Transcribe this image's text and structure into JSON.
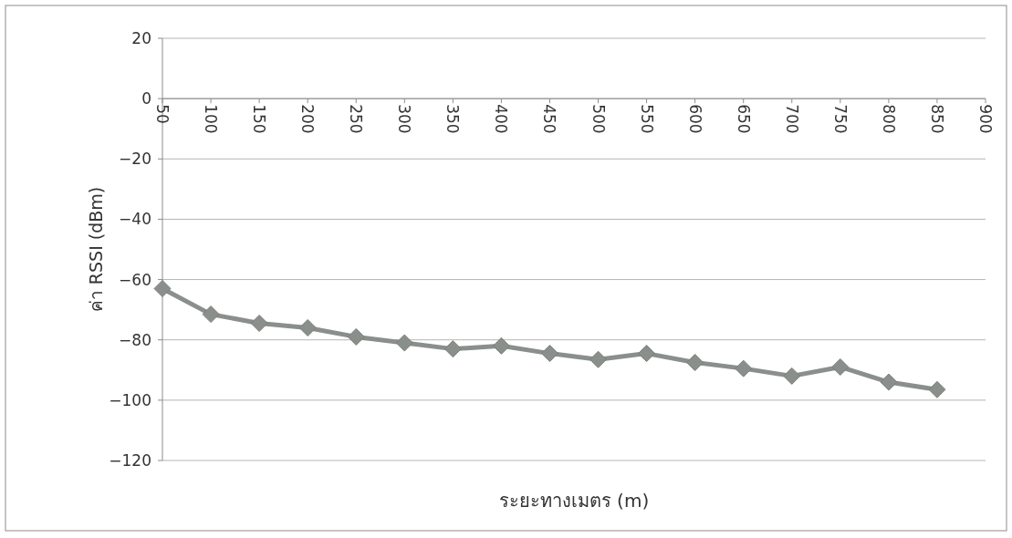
{
  "chart_data": {
    "type": "line",
    "xlabel": "ระยะทางเมตร (m)",
    "ylabel": "ค่า RSSI (dBm)",
    "categories": [
      "50",
      "100",
      "150",
      "200",
      "250",
      "300",
      "350",
      "400",
      "450",
      "500",
      "550",
      "600",
      "650",
      "700",
      "750",
      "800",
      "850",
      "900"
    ],
    "series": [
      {
        "color": "#8a8f8c",
        "values": [
          -63,
          -71.5,
          -74.5,
          -76,
          -79,
          -81,
          -83,
          -82,
          -84.5,
          -86.5,
          -84.5,
          -87.5,
          -89.5,
          -92,
          -89,
          -94,
          -96.5,
          null
        ]
      }
    ],
    "ylim": [
      -120,
      20
    ],
    "yticks": [
      -120,
      -100,
      -80,
      -60,
      -40,
      -20,
      0,
      20
    ],
    "grid": "y",
    "marker": "diamond",
    "line_style": "solid"
  }
}
